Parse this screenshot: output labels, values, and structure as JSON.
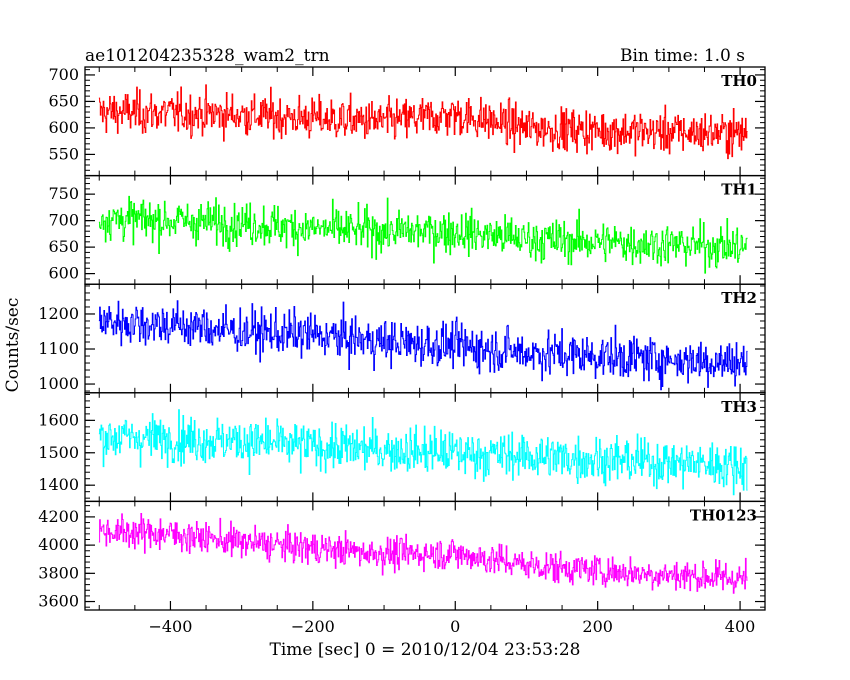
{
  "header": {
    "title": "ae101204235328_wam2_trn",
    "bin_time": "Bin time: 1.0 s"
  },
  "chart_data": {
    "type": "line",
    "title": "ae101204235328_wam2_trn",
    "subtitle": "Bin time: 1.0 s",
    "xlabel": "Time [sec] 0 = 2010/12/04 23:53:28",
    "ylabel": "Counts/sec",
    "xlim": [
      -520,
      435
    ],
    "x_ticks": [
      -400,
      -200,
      0,
      200,
      400
    ],
    "x_tick_labels": [
      "−400",
      "−200",
      "0",
      "200",
      "400"
    ],
    "x_data_range": [
      -500,
      410
    ],
    "bin_time_s": 1.0,
    "grid": false,
    "legend": "none",
    "series": [
      {
        "name": "TH0",
        "color": "#ff0000",
        "ylim": [
          510,
          715
        ],
        "y_ticks": [
          550,
          600,
          650,
          700
        ],
        "y_tick_labels": [
          "550",
          "600",
          "650",
          "700"
        ],
        "x": [
          -500,
          -400,
          -300,
          -200,
          -100,
          0,
          100,
          200,
          300,
          410
        ],
        "values": [
          630,
          628,
          625,
          618,
          612,
          625,
          600,
          595,
          592,
          590
        ],
        "noise": 28
      },
      {
        "name": "TH1",
        "color": "#00ff00",
        "ylim": [
          580,
          785
        ],
        "y_ticks": [
          600,
          650,
          700,
          750
        ],
        "y_tick_labels": [
          "600",
          "650",
          "700",
          "750"
        ],
        "x": [
          -500,
          -400,
          -300,
          -200,
          -100,
          0,
          100,
          200,
          300,
          410
        ],
        "values": [
          705,
          700,
          695,
          685,
          680,
          680,
          665,
          660,
          655,
          650
        ],
        "noise": 28
      },
      {
        "name": "TH2",
        "color": "#0000ff",
        "ylim": [
          975,
          1285
        ],
        "y_ticks": [
          1000,
          1100,
          1200
        ],
        "y_tick_labels": [
          "1000",
          "1100",
          "1200"
        ],
        "x": [
          -500,
          -400,
          -300,
          -200,
          -100,
          0,
          100,
          200,
          300,
          410
        ],
        "values": [
          1180,
          1170,
          1150,
          1140,
          1120,
          1110,
          1090,
          1080,
          1070,
          1060
        ],
        "noise": 45
      },
      {
        "name": "TH3",
        "color": "#00ffff",
        "ylim": [
          1350,
          1685
        ],
        "y_ticks": [
          1400,
          1500,
          1600
        ],
        "y_tick_labels": [
          "1400",
          "1500",
          "1600"
        ],
        "x": [
          -500,
          -400,
          -300,
          -200,
          -100,
          0,
          100,
          200,
          300,
          410
        ],
        "values": [
          1550,
          1545,
          1535,
          1520,
          1510,
          1500,
          1490,
          1480,
          1470,
          1460
        ],
        "noise": 50
      },
      {
        "name": "TH0123",
        "color": "#ff00ff",
        "ylim": [
          3540,
          4310
        ],
        "y_ticks": [
          3600,
          3800,
          4000,
          4200
        ],
        "y_tick_labels": [
          "3600",
          "3800",
          "4000",
          "4200"
        ],
        "x": [
          -500,
          -400,
          -300,
          -200,
          -100,
          0,
          100,
          200,
          300,
          410
        ],
        "values": [
          4100,
          4080,
          4020,
          3980,
          3940,
          3940,
          3860,
          3820,
          3790,
          3760
        ],
        "noise": 80
      }
    ]
  }
}
